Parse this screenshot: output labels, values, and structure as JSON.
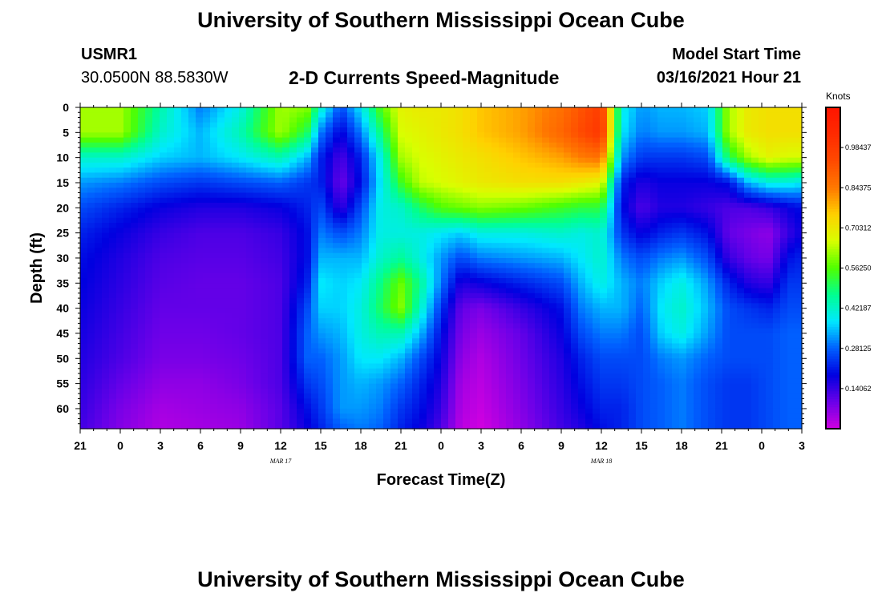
{
  "header": {
    "title": "University of Southern Mississippi Ocean Cube",
    "station": "USMR1",
    "coordinates": "30.0500N 88.5830W",
    "plot_title": "2-D Currents Speed-Magnitude",
    "model_start_label": "Model Start Time",
    "model_start_value": "03/16/2021 Hour 21"
  },
  "footer": {
    "title": "University of Southern Mississippi Ocean Cube"
  },
  "chart_data": {
    "type": "heatmap",
    "title": "2-D Currents Speed-Magnitude",
    "xlabel": "Forecast Time(Z)",
    "ylabel": "Depth (ft)",
    "x_tick_labels": [
      "21",
      "0",
      "3",
      "6",
      "9",
      "12",
      "15",
      "18",
      "21",
      "0",
      "3",
      "6",
      "9",
      "12",
      "15",
      "18",
      "21",
      "0",
      "3"
    ],
    "date_labels": [
      {
        "label": "MAR 17",
        "hours": 15
      },
      {
        "label": "MAR 18",
        "hours": 39
      }
    ],
    "xlim_hours": [
      0,
      54
    ],
    "y_tick_labels": [
      "0",
      "5",
      "10",
      "15",
      "20",
      "25",
      "30",
      "35",
      "40",
      "45",
      "50",
      "55",
      "60"
    ],
    "ylim": [
      0,
      64
    ],
    "colorbar": {
      "units": "Knots",
      "tick_labels": [
        "0.98437",
        "0.84375",
        "0.70312",
        "0.56250",
        "0.42187",
        "0.28125",
        "0.14062"
      ],
      "tick_values": [
        0.98437,
        0.84375,
        0.70312,
        0.5625,
        0.42187,
        0.28125,
        0.14062
      ],
      "range": [
        0.0,
        1.125
      ],
      "colors": [
        "#d000e0",
        "#6a00e8",
        "#0000e0",
        "#0060ff",
        "#00e8ff",
        "#00ff90",
        "#50ff00",
        "#d8ff00",
        "#ffd000",
        "#ff7800",
        "#ff4a00",
        "#ff2a00",
        "#ff1500"
      ]
    },
    "field": {
      "description_units": "speed in knots at (forecast hour, depth ft) control points",
      "hours": [
        0,
        3,
        6,
        9,
        12,
        15,
        17,
        18,
        19.5,
        21,
        22.5,
        24,
        25.5,
        27,
        28.5,
        30,
        33,
        36,
        37.5,
        39,
        40.5,
        42,
        43.5,
        45,
        47,
        48.5,
        50,
        51.5,
        53,
        54
      ],
      "depths": [
        0,
        5,
        10,
        15,
        20,
        25,
        30,
        35,
        40,
        45,
        50,
        55,
        60,
        64
      ],
      "speed": [
        [
          0.62,
          0.62,
          0.42,
          0.32,
          0.26,
          0.22,
          0.2,
          0.19,
          0.18,
          0.17,
          0.16,
          0.15,
          0.14,
          0.13
        ],
        [
          0.62,
          0.62,
          0.42,
          0.3,
          0.22,
          0.18,
          0.16,
          0.15,
          0.14,
          0.13,
          0.12,
          0.1,
          0.08,
          0.07
        ],
        [
          0.45,
          0.42,
          0.36,
          0.26,
          0.18,
          0.14,
          0.12,
          0.11,
          0.1,
          0.09,
          0.08,
          0.06,
          0.04,
          0.03
        ],
        [
          0.3,
          0.34,
          0.34,
          0.24,
          0.16,
          0.12,
          0.11,
          0.1,
          0.1,
          0.09,
          0.08,
          0.06,
          0.05,
          0.04
        ],
        [
          0.4,
          0.44,
          0.38,
          0.26,
          0.16,
          0.12,
          0.11,
          0.1,
          0.1,
          0.1,
          0.09,
          0.08,
          0.06,
          0.05
        ],
        [
          0.62,
          0.62,
          0.44,
          0.28,
          0.18,
          0.14,
          0.13,
          0.12,
          0.12,
          0.12,
          0.12,
          0.12,
          0.11,
          0.11
        ],
        [
          0.6,
          0.5,
          0.34,
          0.24,
          0.22,
          0.2,
          0.2,
          0.22,
          0.26,
          0.28,
          0.28,
          0.24,
          0.2,
          0.18
        ],
        [
          0.42,
          0.3,
          0.22,
          0.22,
          0.26,
          0.3,
          0.34,
          0.38,
          0.36,
          0.32,
          0.28,
          0.26,
          0.24,
          0.22
        ],
        [
          0.26,
          0.18,
          0.12,
          0.09,
          0.14,
          0.26,
          0.34,
          0.36,
          0.36,
          0.34,
          0.32,
          0.32,
          0.32,
          0.28
        ],
        [
          0.38,
          0.3,
          0.22,
          0.2,
          0.26,
          0.3,
          0.34,
          0.38,
          0.4,
          0.4,
          0.38,
          0.34,
          0.32,
          0.3
        ],
        [
          0.56,
          0.48,
          0.4,
          0.38,
          0.4,
          0.4,
          0.42,
          0.48,
          0.5,
          0.44,
          0.38,
          0.32,
          0.3,
          0.28
        ],
        [
          0.68,
          0.66,
          0.62,
          0.54,
          0.42,
          0.4,
          0.46,
          0.58,
          0.6,
          0.44,
          0.34,
          0.28,
          0.24,
          0.22
        ],
        [
          0.7,
          0.68,
          0.66,
          0.64,
          0.5,
          0.4,
          0.4,
          0.46,
          0.42,
          0.34,
          0.26,
          0.22,
          0.2,
          0.18
        ],
        [
          0.7,
          0.7,
          0.68,
          0.66,
          0.56,
          0.38,
          0.32,
          0.3,
          0.24,
          0.2,
          0.18,
          0.16,
          0.14,
          0.12
        ],
        [
          0.72,
          0.72,
          0.7,
          0.68,
          0.58,
          0.36,
          0.26,
          0.16,
          0.1,
          0.08,
          0.06,
          0.04,
          0.03,
          0.02
        ],
        [
          0.76,
          0.76,
          0.72,
          0.7,
          0.6,
          0.4,
          0.3,
          0.18,
          0.08,
          0.05,
          0.03,
          0.02,
          0.01,
          0.0
        ],
        [
          0.8,
          0.8,
          0.76,
          0.72,
          0.58,
          0.4,
          0.32,
          0.22,
          0.14,
          0.1,
          0.09,
          0.08,
          0.07,
          0.06
        ],
        [
          0.86,
          0.88,
          0.8,
          0.72,
          0.54,
          0.42,
          0.34,
          0.26,
          0.2,
          0.18,
          0.16,
          0.15,
          0.14,
          0.13
        ],
        [
          0.92,
          0.94,
          0.84,
          0.7,
          0.52,
          0.4,
          0.38,
          0.34,
          0.3,
          0.26,
          0.22,
          0.2,
          0.18,
          0.16
        ],
        [
          0.98,
          1.0,
          0.86,
          0.68,
          0.52,
          0.42,
          0.42,
          0.4,
          0.34,
          0.3,
          0.26,
          0.24,
          0.22,
          0.2
        ],
        [
          0.4,
          0.38,
          0.32,
          0.22,
          0.2,
          0.24,
          0.3,
          0.34,
          0.34,
          0.3,
          0.26,
          0.24,
          0.22,
          0.22
        ],
        [
          0.32,
          0.3,
          0.24,
          0.16,
          0.12,
          0.18,
          0.26,
          0.3,
          0.28,
          0.26,
          0.26,
          0.26,
          0.26,
          0.26
        ],
        [
          0.34,
          0.32,
          0.24,
          0.18,
          0.16,
          0.22,
          0.3,
          0.36,
          0.38,
          0.36,
          0.3,
          0.28,
          0.28,
          0.28
        ],
        [
          0.34,
          0.32,
          0.24,
          0.18,
          0.16,
          0.24,
          0.32,
          0.4,
          0.42,
          0.4,
          0.32,
          0.3,
          0.3,
          0.3
        ],
        [
          0.36,
          0.34,
          0.26,
          0.18,
          0.14,
          0.2,
          0.26,
          0.32,
          0.34,
          0.32,
          0.28,
          0.26,
          0.26,
          0.26
        ],
        [
          0.62,
          0.62,
          0.5,
          0.2,
          0.12,
          0.1,
          0.14,
          0.22,
          0.26,
          0.26,
          0.26,
          0.24,
          0.24,
          0.24
        ],
        [
          0.7,
          0.7,
          0.62,
          0.34,
          0.12,
          0.08,
          0.1,
          0.16,
          0.24,
          0.26,
          0.26,
          0.24,
          0.24,
          0.24
        ],
        [
          0.72,
          0.72,
          0.68,
          0.4,
          0.14,
          0.06,
          0.08,
          0.14,
          0.22,
          0.26,
          0.26,
          0.26,
          0.26,
          0.26
        ],
        [
          0.72,
          0.72,
          0.66,
          0.4,
          0.18,
          0.14,
          0.2,
          0.24,
          0.26,
          0.28,
          0.28,
          0.28,
          0.28,
          0.28
        ],
        [
          0.72,
          0.72,
          0.66,
          0.38,
          0.2,
          0.18,
          0.22,
          0.24,
          0.26,
          0.28,
          0.28,
          0.28,
          0.28,
          0.28
        ]
      ]
    }
  }
}
